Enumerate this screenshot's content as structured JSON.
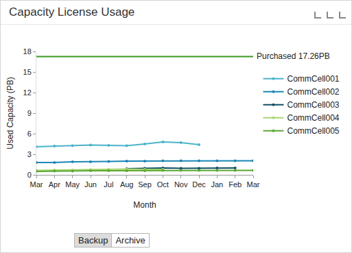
{
  "chart_data": {
    "type": "line",
    "title": "Capacity License Usage",
    "x_label": "Month",
    "y_label": "Used Capacity (PB)",
    "categories": [
      "Mar",
      "Apr",
      "May",
      "Jun",
      "Jul",
      "Aug",
      "Sep",
      "Oct",
      "Nov",
      "Dec",
      "Jan",
      "Feb",
      "Mar"
    ],
    "series": [
      {
        "name": "CommCell001",
        "color": "#4bb3cc",
        "values": [
          4.1,
          4.2,
          4.25,
          4.35,
          4.3,
          4.25,
          4.5,
          4.8,
          4.7,
          4.4,
          null,
          null,
          null
        ]
      },
      {
        "name": "CommCell002",
        "color": "#1b86b5",
        "values": [
          1.8,
          1.8,
          1.9,
          1.9,
          1.95,
          2.0,
          2.0,
          2.05,
          2.05,
          2.05,
          2.05,
          2.05,
          2.05
        ]
      },
      {
        "name": "CommCell003",
        "color": "#0e4f66",
        "values": [
          null,
          null,
          null,
          null,
          null,
          0.9,
          0.95,
          1.0,
          0.95,
          0.95,
          1.0,
          1.0,
          null
        ]
      },
      {
        "name": "CommCell004",
        "color": "#a9d46f",
        "values": [
          0.65,
          0.7,
          0.7,
          0.75,
          0.8,
          0.85,
          0.8,
          0.8,
          null,
          null,
          null,
          null,
          null
        ]
      },
      {
        "name": "CommCell005",
        "color": "#5aa832",
        "values": [
          0.5,
          0.55,
          0.55,
          0.6,
          0.6,
          0.6,
          0.6,
          0.65,
          0.65,
          0.65,
          0.65,
          0.65,
          0.65
        ]
      }
    ],
    "reference": {
      "value": 17.26,
      "label": "Purchased 17.26PB",
      "color": "#3a9a1e"
    },
    "ylim": [
      0,
      18
    ],
    "yticks": [
      0,
      3,
      6,
      9,
      12,
      15,
      18
    ],
    "grid": false,
    "legend": "right",
    "marker": "circle"
  },
  "buttons": [
    "Backup",
    "Archive"
  ]
}
